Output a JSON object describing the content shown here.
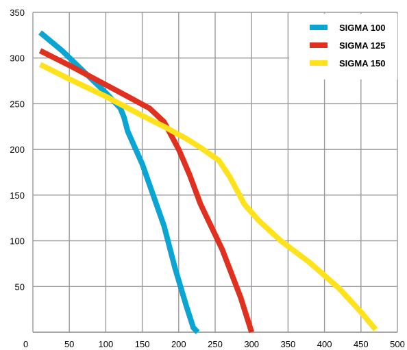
{
  "chart_data": {
    "type": "line",
    "title": "",
    "xlabel": "",
    "ylabel": "",
    "xlim": [
      0,
      500
    ],
    "ylim": [
      0,
      350
    ],
    "x_ticks": [
      0,
      50,
      100,
      150,
      200,
      250,
      300,
      350,
      400,
      450,
      500
    ],
    "x_tick_labels": [
      "0",
      "50",
      "100",
      "150",
      "200",
      "250",
      "300",
      "350",
      "400",
      "450",
      "500"
    ],
    "y_ticks": [
      50,
      100,
      150,
      200,
      250,
      300,
      350
    ],
    "y_tick_labels": [
      "50",
      "100",
      "150",
      "200",
      "250",
      "300",
      "350"
    ],
    "grid": true,
    "legend_position": "top-right",
    "series": [
      {
        "name": "SIGMA 100",
        "color": "#0aa5d2",
        "points": [
          [
            10,
            328
          ],
          [
            40,
            308
          ],
          [
            70,
            285
          ],
          [
            100,
            262
          ],
          [
            120,
            245
          ],
          [
            125,
            235
          ],
          [
            130,
            220
          ],
          [
            150,
            184
          ],
          [
            165,
            150
          ],
          [
            180,
            116
          ],
          [
            195,
            70
          ],
          [
            210,
            30
          ],
          [
            220,
            5
          ],
          [
            226,
            0
          ]
        ]
      },
      {
        "name": "SIGMA 125",
        "color": "#e03020",
        "points": [
          [
            10,
            308
          ],
          [
            50,
            292
          ],
          [
            90,
            275
          ],
          [
            130,
            258
          ],
          [
            160,
            245
          ],
          [
            180,
            230
          ],
          [
            200,
            200
          ],
          [
            215,
            172
          ],
          [
            230,
            140
          ],
          [
            260,
            90
          ],
          [
            285,
            38
          ],
          [
            300,
            0
          ]
        ]
      },
      {
        "name": "SIGMA 150",
        "color": "#ffe11c",
        "points": [
          [
            10,
            293
          ],
          [
            50,
            277
          ],
          [
            100,
            258
          ],
          [
            150,
            237
          ],
          [
            180,
            225
          ],
          [
            210,
            212
          ],
          [
            230,
            202
          ],
          [
            255,
            188
          ],
          [
            270,
            170
          ],
          [
            290,
            140
          ],
          [
            310,
            122
          ],
          [
            340,
            100
          ],
          [
            380,
            76
          ],
          [
            420,
            48
          ],
          [
            450,
            22
          ],
          [
            470,
            3
          ]
        ]
      }
    ]
  }
}
